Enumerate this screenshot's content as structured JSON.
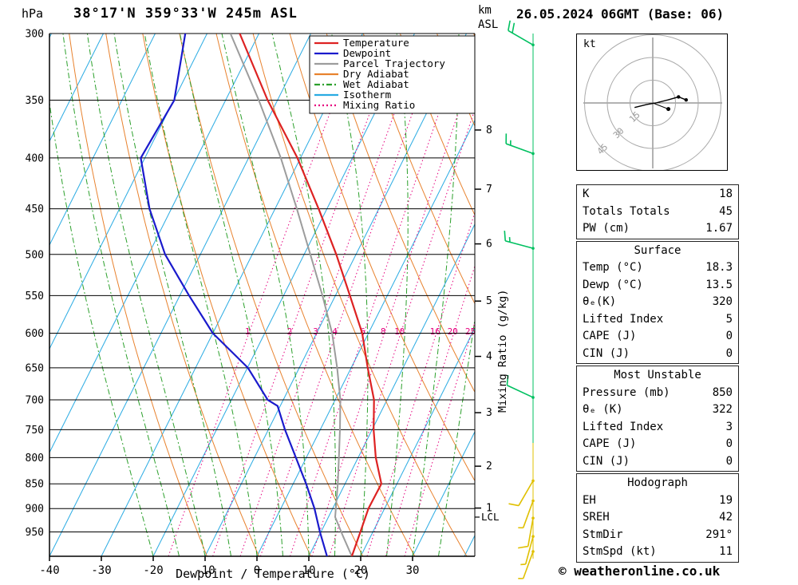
{
  "header": {
    "pressure_unit": "hPa",
    "title": "38°17'N 359°33'W 245m ASL",
    "alt_unit_top": "km",
    "alt_unit_bottom": "ASL",
    "datetime": "26.05.2024 06GMT (Base: 06)"
  },
  "axes": {
    "pressure_ticks": [
      300,
      350,
      400,
      450,
      500,
      550,
      600,
      650,
      700,
      750,
      800,
      850,
      900,
      950
    ],
    "temp_ticks": [
      -40,
      -30,
      -20,
      -10,
      0,
      10,
      20,
      30
    ],
    "xlabel": "Dewpoint / Temperature (°C)",
    "right_axis_label": "Mixing Ratio (g/kg)",
    "km_ticks": [
      8,
      7,
      6,
      5,
      4,
      3,
      2,
      1
    ],
    "lcl_label": "LCL"
  },
  "colors": {
    "temperature": "#dd2222",
    "dewpoint": "#1a1acc",
    "parcel": "#9c9c9c",
    "dry_adiabat": "#e8822e",
    "wet_adiabat": "#2ca02c",
    "isotherm": "#29abe2",
    "mixing_ratio": "#e6007e",
    "barb_upper": "#00c060",
    "barb_lower": "#e0c000",
    "grid": "#000000"
  },
  "legend": [
    {
      "label": "Temperature",
      "color": "#dd2222",
      "dash": ""
    },
    {
      "label": "Dewpoint",
      "color": "#1a1acc",
      "dash": ""
    },
    {
      "label": "Parcel Trajectory",
      "color": "#9c9c9c",
      "dash": ""
    },
    {
      "label": "Dry Adiabat",
      "color": "#e8822e",
      "dash": ""
    },
    {
      "label": "Wet Adiabat",
      "color": "#2ca02c",
      "dash": "7 3 2 3"
    },
    {
      "label": "Isotherm",
      "color": "#29abe2",
      "dash": ""
    },
    {
      "label": "Mixing Ratio",
      "color": "#e6007e",
      "dash": "2 3"
    }
  ],
  "chart_data": {
    "type": "skewt_log_p_sounding",
    "station": "38°17'N 359°33'W 245m ASL",
    "valid": "26.05.2024 06GMT (Base: 06)",
    "pressure_range_hpa": [
      300,
      1005
    ],
    "temp_axis_range_c": [
      -40,
      40
    ],
    "mixing_ratio_lines_gkg": [
      1,
      2,
      3,
      4,
      6,
      8,
      10,
      16,
      20,
      25
    ],
    "lcl_hpa": 918,
    "km_pressures": {
      "1": 899,
      "2": 816,
      "3": 721,
      "4": 633,
      "5": 557,
      "6": 488,
      "7": 430,
      "8": 375
    },
    "temperature_profile": [
      {
        "p": 1005,
        "t": 18.3
      },
      {
        "p": 950,
        "t": 17.6
      },
      {
        "p": 900,
        "t": 16.9
      },
      {
        "p": 850,
        "t": 17.0
      },
      {
        "p": 800,
        "t": 13.4
      },
      {
        "p": 750,
        "t": 10.3
      },
      {
        "p": 700,
        "t": 7.5
      },
      {
        "p": 650,
        "t": 3.2
      },
      {
        "p": 600,
        "t": -1.2
      },
      {
        "p": 550,
        "t": -7.2
      },
      {
        "p": 500,
        "t": -13.8
      },
      {
        "p": 450,
        "t": -21.6
      },
      {
        "p": 400,
        "t": -30.6
      },
      {
        "p": 350,
        "t": -41.9
      },
      {
        "p": 300,
        "t": -53.7
      }
    ],
    "dewpoint_profile": [
      {
        "p": 1005,
        "t": 13.5
      },
      {
        "p": 950,
        "t": 9.8
      },
      {
        "p": 900,
        "t": 6.5
      },
      {
        "p": 850,
        "t": 2.5
      },
      {
        "p": 800,
        "t": -2.0
      },
      {
        "p": 750,
        "t": -6.8
      },
      {
        "p": 710,
        "t": -10.5
      },
      {
        "p": 700,
        "t": -13.0
      },
      {
        "p": 650,
        "t": -19.9
      },
      {
        "p": 600,
        "t": -30.0
      },
      {
        "p": 550,
        "t": -38.2
      },
      {
        "p": 500,
        "t": -46.8
      },
      {
        "p": 450,
        "t": -54.2
      },
      {
        "p": 400,
        "t": -60.8
      },
      {
        "p": 350,
        "t": -59.9
      },
      {
        "p": 300,
        "t": -64.2
      }
    ],
    "parcel_profile": [
      {
        "p": 1005,
        "t": 18.3
      },
      {
        "p": 960,
        "t": 14.7
      },
      {
        "p": 918,
        "t": 11.3
      },
      {
        "p": 850,
        "t": 8.6
      },
      {
        "p": 800,
        "t": 6.3
      },
      {
        "p": 750,
        "t": 3.8
      },
      {
        "p": 700,
        "t": 1.0
      },
      {
        "p": 650,
        "t": -2.7
      },
      {
        "p": 600,
        "t": -7.0
      },
      {
        "p": 550,
        "t": -12.5
      },
      {
        "p": 500,
        "t": -18.8
      },
      {
        "p": 450,
        "t": -25.8
      },
      {
        "p": 400,
        "t": -33.8
      },
      {
        "p": 350,
        "t": -43.6
      },
      {
        "p": 300,
        "t": -55.5
      }
    ],
    "wind_barbs": [
      {
        "p": 308,
        "speed_kt": 20,
        "dir_deg": 300,
        "level": "upper"
      },
      {
        "p": 396,
        "speed_kt": 15,
        "dir_deg": 290,
        "level": "upper"
      },
      {
        "p": 493,
        "speed_kt": 15,
        "dir_deg": 285,
        "level": "upper"
      },
      {
        "p": 696,
        "speed_kt": 10,
        "dir_deg": 295,
        "level": "upper"
      },
      {
        "p": 844,
        "speed_kt": 10,
        "dir_deg": 210,
        "level": "lower"
      },
      {
        "p": 884,
        "speed_kt": 5,
        "dir_deg": 200,
        "level": "lower"
      },
      {
        "p": 920,
        "speed_kt": 10,
        "dir_deg": 190,
        "level": "lower"
      },
      {
        "p": 960,
        "speed_kt": 5,
        "dir_deg": 195,
        "level": "lower"
      },
      {
        "p": 994,
        "speed_kt": 5,
        "dir_deg": 200,
        "level": "lower"
      }
    ],
    "hodograph": {
      "unit_label": "kt",
      "ring_radii_kt": [
        15,
        30,
        45
      ],
      "trace_uv_kt": [
        [
          -12,
          -3
        ],
        [
          -4,
          -1
        ],
        [
          2,
          0
        ],
        [
          10,
          2
        ],
        [
          17,
          4
        ],
        [
          22,
          2
        ]
      ],
      "trace_dot_indices": [
        4,
        5
      ],
      "storm_motion_uv_kt": [
        10.3,
        -4
      ]
    }
  },
  "tables": {
    "indices": {
      "rows": [
        {
          "label": "K",
          "value": "18"
        },
        {
          "label": "Totals Totals",
          "value": "45"
        },
        {
          "label": "PW (cm)",
          "value": "1.67"
        }
      ]
    },
    "surface": {
      "title": "Surface",
      "rows": [
        {
          "label": "Temp (°C)",
          "value": "18.3"
        },
        {
          "label": "Dewp (°C)",
          "value": "13.5"
        },
        {
          "label": "θₑ(K)",
          "value": "320"
        },
        {
          "label": "Lifted Index",
          "value": "5"
        },
        {
          "label": "CAPE (J)",
          "value": "0"
        },
        {
          "label": "CIN (J)",
          "value": "0"
        }
      ]
    },
    "most_unstable": {
      "title": "Most Unstable",
      "rows": [
        {
          "label": "Pressure (mb)",
          "value": "850"
        },
        {
          "label": "θₑ (K)",
          "value": "322"
        },
        {
          "label": "Lifted Index",
          "value": "3"
        },
        {
          "label": "CAPE (J)",
          "value": "0"
        },
        {
          "label": "CIN (J)",
          "value": "0"
        }
      ]
    },
    "hodograph": {
      "title": "Hodograph",
      "rows": [
        {
          "label": "EH",
          "value": "19"
        },
        {
          "label": "SREH",
          "value": "42"
        },
        {
          "label": "StmDir",
          "value": "291°"
        },
        {
          "label": "StmSpd (kt)",
          "value": "11"
        }
      ]
    }
  },
  "footer": {
    "copyright": "© weatheronline.co.uk"
  }
}
